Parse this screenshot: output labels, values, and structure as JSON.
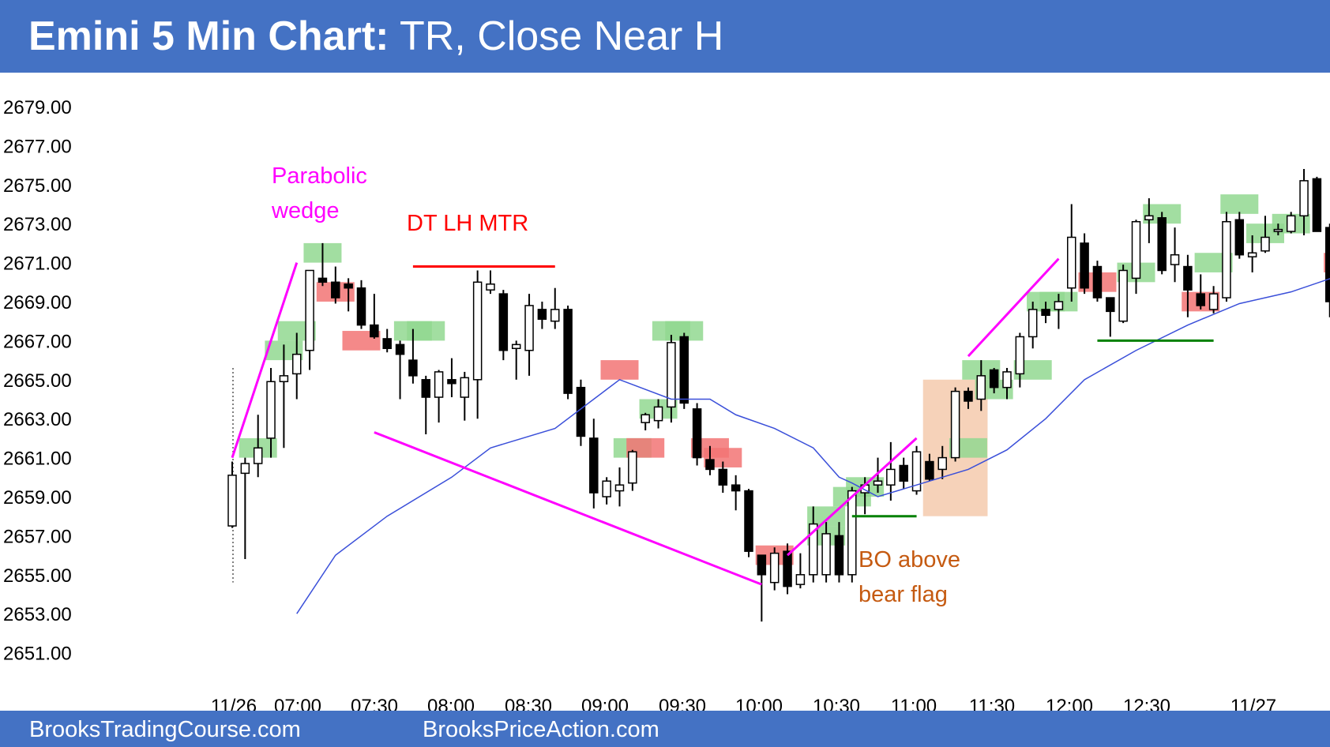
{
  "header": {
    "title_bold": "Emini 5 Min Chart:",
    "title_rest": " TR, Close Near H"
  },
  "footer": {
    "left": "BrooksTradingCourse.com",
    "right": "BrooksPriceAction.com"
  },
  "colors": {
    "bull_bar": "#ffffff",
    "bear_bar": "#000000",
    "ema": "#3a4fd9",
    "annotation_magenta": "#ff00ff",
    "annotation_red": "#ff0000",
    "annotation_orange": "#c55a11",
    "support_green": "#008000",
    "green_box": "#92d891",
    "red_box": "#f27474",
    "bo_box": "#f4c7a8"
  },
  "chart_data": {
    "type": "candlestick",
    "title": "Emini 5 Min Chart: TR, Close Near H",
    "ylim": [
      2651,
      2679
    ],
    "y_ticks": [
      "2679.00",
      "2677.00",
      "2675.00",
      "2673.00",
      "2671.00",
      "2669.00",
      "2667.00",
      "2665.00",
      "2663.00",
      "2661.00",
      "2659.00",
      "2657.00",
      "2655.00",
      "2653.00",
      "2651.00"
    ],
    "x_labels": [
      "11/26",
      "07:00",
      "07:30",
      "08:00",
      "08:30",
      "09:00",
      "09:30",
      "10:00",
      "10:30",
      "11:00",
      "11:30",
      "12:00",
      "12:30",
      "11/27"
    ],
    "candles": [
      {
        "i": 0,
        "o": 2657.5,
        "h": 2660.8,
        "l": 2657.4,
        "c": 2660.1
      },
      {
        "i": 1,
        "o": 2660.2,
        "h": 2661.0,
        "l": 2655.8,
        "c": 2660.7
      },
      {
        "i": 2,
        "o": 2660.7,
        "h": 2663.2,
        "l": 2660.0,
        "c": 2661.5
      },
      {
        "i": 3,
        "o": 2662.0,
        "h": 2665.6,
        "l": 2661.0,
        "c": 2664.9
      },
      {
        "i": 4,
        "o": 2664.9,
        "h": 2666.8,
        "l": 2661.5,
        "c": 2665.2
      },
      {
        "i": 5,
        "o": 2665.3,
        "h": 2667.4,
        "l": 2664.0,
        "c": 2666.3
      },
      {
        "i": 6,
        "o": 2666.5,
        "h": 2670.6,
        "l": 2665.5,
        "c": 2670.6
      },
      {
        "i": 7,
        "o": 2670.2,
        "h": 2672.0,
        "l": 2669.8,
        "c": 2670.0
      },
      {
        "i": 8,
        "o": 2670.0,
        "h": 2670.8,
        "l": 2668.9,
        "c": 2669.2
      },
      {
        "i": 9,
        "o": 2669.9,
        "h": 2670.2,
        "l": 2668.5,
        "c": 2669.7
      },
      {
        "i": 10,
        "o": 2669.7,
        "h": 2670.1,
        "l": 2667.6,
        "c": 2667.8
      },
      {
        "i": 11,
        "o": 2667.8,
        "h": 2669.4,
        "l": 2667.1,
        "c": 2667.2
      },
      {
        "i": 12,
        "o": 2667.1,
        "h": 2667.6,
        "l": 2666.4,
        "c": 2666.6
      },
      {
        "i": 13,
        "o": 2666.8,
        "h": 2667.0,
        "l": 2664.0,
        "c": 2666.3
      },
      {
        "i": 14,
        "o": 2666.0,
        "h": 2667.6,
        "l": 2664.8,
        "c": 2665.2
      },
      {
        "i": 15,
        "o": 2665.0,
        "h": 2665.2,
        "l": 2662.2,
        "c": 2664.1
      },
      {
        "i": 16,
        "o": 2664.1,
        "h": 2665.5,
        "l": 2662.8,
        "c": 2665.4
      },
      {
        "i": 17,
        "o": 2665.0,
        "h": 2666.1,
        "l": 2664.1,
        "c": 2664.8
      },
      {
        "i": 18,
        "o": 2664.1,
        "h": 2665.4,
        "l": 2662.9,
        "c": 2665.1
      },
      {
        "i": 19,
        "o": 2665.0,
        "h": 2670.6,
        "l": 2663.0,
        "c": 2670.0
      },
      {
        "i": 20,
        "o": 2669.6,
        "h": 2670.6,
        "l": 2669.4,
        "c": 2669.9
      },
      {
        "i": 21,
        "o": 2669.4,
        "h": 2669.6,
        "l": 2666.0,
        "c": 2666.5
      },
      {
        "i": 22,
        "o": 2666.6,
        "h": 2667.0,
        "l": 2665.0,
        "c": 2666.8
      },
      {
        "i": 23,
        "o": 2666.5,
        "h": 2669.4,
        "l": 2665.2,
        "c": 2668.8
      },
      {
        "i": 24,
        "o": 2668.6,
        "h": 2669.0,
        "l": 2667.6,
        "c": 2668.1
      },
      {
        "i": 25,
        "o": 2668.0,
        "h": 2669.7,
        "l": 2667.6,
        "c": 2668.6
      },
      {
        "i": 26,
        "o": 2668.6,
        "h": 2668.8,
        "l": 2664.0,
        "c": 2664.3
      },
      {
        "i": 27,
        "o": 2664.6,
        "h": 2665.0,
        "l": 2661.6,
        "c": 2662.1
      },
      {
        "i": 28,
        "o": 2662.0,
        "h": 2663.0,
        "l": 2658.4,
        "c": 2659.2
      },
      {
        "i": 29,
        "o": 2659.0,
        "h": 2660.0,
        "l": 2658.6,
        "c": 2659.8
      },
      {
        "i": 30,
        "o": 2659.3,
        "h": 2660.5,
        "l": 2658.5,
        "c": 2659.6
      },
      {
        "i": 31,
        "o": 2659.7,
        "h": 2661.4,
        "l": 2659.3,
        "c": 2661.3
      },
      {
        "i": 32,
        "o": 2662.8,
        "h": 2663.3,
        "l": 2662.4,
        "c": 2663.2
      },
      {
        "i": 33,
        "o": 2662.9,
        "h": 2664.0,
        "l": 2662.5,
        "c": 2663.6
      },
      {
        "i": 34,
        "o": 2663.6,
        "h": 2667.3,
        "l": 2662.8,
        "c": 2666.9
      },
      {
        "i": 35,
        "o": 2667.2,
        "h": 2667.4,
        "l": 2663.5,
        "c": 2663.8
      },
      {
        "i": 36,
        "o": 2663.5,
        "h": 2663.8,
        "l": 2660.6,
        "c": 2661.0
      },
      {
        "i": 37,
        "o": 2660.9,
        "h": 2661.6,
        "l": 2660.1,
        "c": 2660.4
      },
      {
        "i": 38,
        "o": 2660.4,
        "h": 2660.8,
        "l": 2659.2,
        "c": 2659.6
      },
      {
        "i": 39,
        "o": 2659.6,
        "h": 2660.1,
        "l": 2658.3,
        "c": 2659.3
      },
      {
        "i": 40,
        "o": 2659.3,
        "h": 2659.4,
        "l": 2655.9,
        "c": 2656.2
      },
      {
        "i": 41,
        "o": 2656.0,
        "h": 2656.0,
        "l": 2652.6,
        "c": 2655.0
      },
      {
        "i": 42,
        "o": 2654.6,
        "h": 2656.4,
        "l": 2654.2,
        "c": 2656.1
      },
      {
        "i": 43,
        "o": 2656.2,
        "h": 2656.6,
        "l": 2654.0,
        "c": 2654.4
      },
      {
        "i": 44,
        "o": 2654.5,
        "h": 2656.1,
        "l": 2654.3,
        "c": 2655.0
      },
      {
        "i": 45,
        "o": 2655.0,
        "h": 2658.5,
        "l": 2654.6,
        "c": 2657.6
      },
      {
        "i": 46,
        "o": 2655.0,
        "h": 2657.7,
        "l": 2654.6,
        "c": 2657.1
      },
      {
        "i": 47,
        "o": 2657.0,
        "h": 2657.7,
        "l": 2654.6,
        "c": 2655.0
      },
      {
        "i": 48,
        "o": 2655.0,
        "h": 2659.5,
        "l": 2654.6,
        "c": 2659.3
      },
      {
        "i": 49,
        "o": 2659.2,
        "h": 2660.0,
        "l": 2658.1,
        "c": 2659.6
      },
      {
        "i": 50,
        "o": 2659.6,
        "h": 2661.0,
        "l": 2659.2,
        "c": 2659.8
      },
      {
        "i": 51,
        "o": 2659.6,
        "h": 2661.8,
        "l": 2658.8,
        "c": 2660.4
      },
      {
        "i": 52,
        "o": 2660.6,
        "h": 2661.0,
        "l": 2659.4,
        "c": 2659.8
      },
      {
        "i": 53,
        "o": 2659.3,
        "h": 2661.6,
        "l": 2659.1,
        "c": 2661.3
      },
      {
        "i": 54,
        "o": 2660.8,
        "h": 2661.2,
        "l": 2659.8,
        "c": 2659.9
      },
      {
        "i": 55,
        "o": 2660.4,
        "h": 2661.6,
        "l": 2659.9,
        "c": 2661.0
      },
      {
        "i": 56,
        "o": 2661.0,
        "h": 2664.6,
        "l": 2660.8,
        "c": 2664.4
      },
      {
        "i": 57,
        "o": 2664.4,
        "h": 2664.6,
        "l": 2663.5,
        "c": 2663.9
      },
      {
        "i": 58,
        "o": 2664.0,
        "h": 2666.0,
        "l": 2663.4,
        "c": 2665.2
      },
      {
        "i": 59,
        "o": 2665.5,
        "h": 2665.6,
        "l": 2664.3,
        "c": 2664.6
      },
      {
        "i": 60,
        "o": 2664.6,
        "h": 2665.6,
        "l": 2664.0,
        "c": 2665.4
      },
      {
        "i": 61,
        "o": 2665.3,
        "h": 2667.4,
        "l": 2664.6,
        "c": 2667.2
      },
      {
        "i": 62,
        "o": 2667.2,
        "h": 2669.0,
        "l": 2666.6,
        "c": 2668.6
      },
      {
        "i": 63,
        "o": 2668.6,
        "h": 2669.0,
        "l": 2667.9,
        "c": 2668.3
      },
      {
        "i": 64,
        "o": 2668.6,
        "h": 2669.4,
        "l": 2667.6,
        "c": 2669.0
      },
      {
        "i": 65,
        "o": 2669.7,
        "h": 2674.0,
        "l": 2669.0,
        "c": 2672.3
      },
      {
        "i": 66,
        "o": 2672.0,
        "h": 2672.5,
        "l": 2669.4,
        "c": 2669.7
      },
      {
        "i": 67,
        "o": 2670.8,
        "h": 2671.1,
        "l": 2669.0,
        "c": 2669.2
      },
      {
        "i": 68,
        "o": 2669.2,
        "h": 2669.2,
        "l": 2667.2,
        "c": 2668.5
      },
      {
        "i": 69,
        "o": 2668.0,
        "h": 2670.9,
        "l": 2667.9,
        "c": 2670.6
      },
      {
        "i": 70,
        "o": 2670.2,
        "h": 2673.2,
        "l": 2669.4,
        "c": 2673.1
      },
      {
        "i": 71,
        "o": 2673.2,
        "h": 2674.3,
        "l": 2672.0,
        "c": 2673.4
      },
      {
        "i": 72,
        "o": 2673.3,
        "h": 2673.6,
        "l": 2670.4,
        "c": 2670.6
      },
      {
        "i": 73,
        "o": 2670.9,
        "h": 2672.8,
        "l": 2670.0,
        "c": 2671.4
      },
      {
        "i": 74,
        "o": 2670.8,
        "h": 2671.4,
        "l": 2668.2,
        "c": 2669.6
      },
      {
        "i": 75,
        "o": 2669.4,
        "h": 2670.4,
        "l": 2668.6,
        "c": 2668.8
      },
      {
        "i": 76,
        "o": 2668.6,
        "h": 2669.8,
        "l": 2668.4,
        "c": 2669.4
      },
      {
        "i": 77,
        "o": 2669.2,
        "h": 2673.6,
        "l": 2669.0,
        "c": 2673.1
      },
      {
        "i": 78,
        "o": 2673.2,
        "h": 2673.6,
        "l": 2671.2,
        "c": 2671.4
      },
      {
        "i": 79,
        "o": 2671.3,
        "h": 2672.4,
        "l": 2670.5,
        "c": 2671.5
      },
      {
        "i": 80,
        "o": 2671.6,
        "h": 2673.4,
        "l": 2671.5,
        "c": 2672.3
      },
      {
        "i": 81,
        "o": 2672.6,
        "h": 2673.0,
        "l": 2672.4,
        "c": 2672.7
      },
      {
        "i": 82,
        "o": 2672.6,
        "h": 2673.6,
        "l": 2672.5,
        "c": 2673.4
      },
      {
        "i": 83,
        "o": 2673.4,
        "h": 2675.8,
        "l": 2672.4,
        "c": 2675.2
      },
      {
        "i": 84,
        "o": 2675.3,
        "h": 2675.4,
        "l": 2672.7,
        "c": 2672.6
      },
      {
        "i": 85,
        "o": 2672.8,
        "h": 2673.0,
        "l": 2668.2,
        "c": 2669.0
      }
    ],
    "ema": [
      [
        5,
        2653
      ],
      [
        8,
        2656
      ],
      [
        12,
        2658
      ],
      [
        17,
        2660
      ],
      [
        20,
        2661.5
      ],
      [
        25,
        2662.5
      ],
      [
        28,
        2664.0
      ],
      [
        29,
        2664.5
      ],
      [
        30,
        2665.0
      ],
      [
        34,
        2664.0
      ],
      [
        37,
        2664.0
      ],
      [
        39,
        2663.2
      ],
      [
        42,
        2662.5
      ],
      [
        45,
        2661.5
      ],
      [
        47,
        2660.0
      ],
      [
        48,
        2659.7
      ],
      [
        50,
        2659.0
      ],
      [
        53,
        2659.6
      ],
      [
        57,
        2660.4
      ],
      [
        60,
        2661.4
      ],
      [
        63,
        2663.0
      ],
      [
        66,
        2665.0
      ],
      [
        70,
        2666.5
      ],
      [
        74,
        2667.8
      ],
      [
        78,
        2668.9
      ],
      [
        82,
        2669.5
      ],
      [
        86,
        2670.4
      ],
      [
        89,
        2671.0
      ],
      [
        91,
        2670.9
      ]
    ],
    "green_boxes": [
      [
        2,
        2661.0,
        2662.0
      ],
      [
        4,
        2666.0,
        2667.0
      ],
      [
        5,
        2667.0,
        2668.0
      ],
      [
        7,
        2671.0,
        2672.0
      ],
      [
        14,
        2667.0,
        2668.0
      ],
      [
        15,
        2667.0,
        2668.0
      ],
      [
        31,
        2661.0,
        2662.0
      ],
      [
        33,
        2663.0,
        2664.0
      ],
      [
        34,
        2667.0,
        2668.0
      ],
      [
        35,
        2667.0,
        2668.0
      ],
      [
        46,
        2657.5,
        2658.5
      ],
      [
        46,
        2656.5,
        2657.5
      ],
      [
        48,
        2658.5,
        2659.5
      ],
      [
        49,
        2659.0,
        2660.0
      ],
      [
        57,
        2661.0,
        2662.0
      ],
      [
        58,
        2665.0,
        2666.0
      ],
      [
        59,
        2664.0,
        2665.0
      ],
      [
        62,
        2665.0,
        2666.0
      ],
      [
        63,
        2668.5,
        2669.5
      ],
      [
        64,
        2668.5,
        2669.5
      ],
      [
        70,
        2670.0,
        2671.0
      ],
      [
        72,
        2673.0,
        2674.0
      ],
      [
        76,
        2670.5,
        2671.5
      ],
      [
        78,
        2673.5,
        2674.5
      ],
      [
        80,
        2672.0,
        2673.0
      ],
      [
        82,
        2672.5,
        2673.5
      ]
    ],
    "red_boxes": [
      [
        8,
        2669.0,
        2670.0
      ],
      [
        10,
        2666.5,
        2667.5
      ],
      [
        30,
        2665.0,
        2666.0
      ],
      [
        32,
        2661.0,
        2662.0
      ],
      [
        37,
        2661.0,
        2662.0
      ],
      [
        38,
        2660.5,
        2661.5
      ],
      [
        42,
        2655.5,
        2656.5
      ],
      [
        67,
        2669.5,
        2670.5
      ],
      [
        75,
        2668.5,
        2669.5
      ],
      [
        86,
        2670.5,
        2671.5
      ]
    ],
    "annotations": [
      {
        "text": "Parabolic",
        "color": "magenta"
      },
      {
        "text": "wedge",
        "color": "magenta"
      },
      {
        "text": "DT LH MTR",
        "color": "red"
      },
      {
        "text": "BO above",
        "color": "orange"
      },
      {
        "text": "bear flag",
        "color": "orange"
      }
    ],
    "trend_lines": [
      {
        "color": "magenta",
        "from": [
          0,
          2661.0
        ],
        "to": [
          5,
          2671.0
        ]
      },
      {
        "color": "magenta",
        "from": [
          11,
          2662.3
        ],
        "to": [
          41,
          2654.5
        ]
      },
      {
        "color": "magenta",
        "from": [
          43,
          2656.0
        ],
        "to": [
          53,
          2662.0
        ]
      },
      {
        "color": "magenta",
        "from": [
          57,
          2666.2
        ],
        "to": [
          64,
          2671.2
        ]
      },
      {
        "color": "red",
        "from": [
          14,
          2670.8
        ],
        "to": [
          25,
          2670.8
        ]
      },
      {
        "color": "green",
        "from": [
          48,
          2658.0
        ],
        "to": [
          53,
          2658.0
        ]
      },
      {
        "color": "green",
        "from": [
          67,
          2667.0
        ],
        "to": [
          76,
          2667.0
        ]
      }
    ],
    "bo_box": {
      "from": 53.5,
      "to": 58.5,
      "ylow": 2658.0,
      "yhigh": 2665.0
    }
  }
}
